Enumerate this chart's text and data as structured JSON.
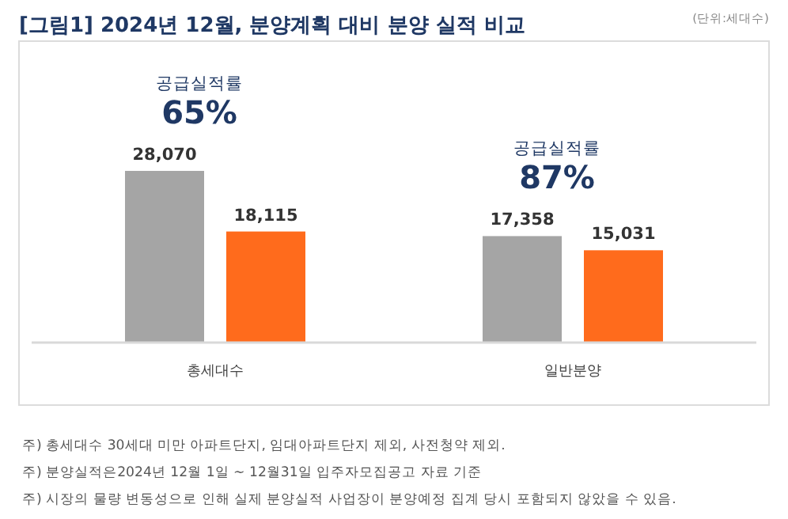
{
  "chart_data": {
    "type": "bar",
    "title": "[그림1] 2024년 12월, 분양계획 대비 분양 실적 비교",
    "subtitle": "(단위:세대수)",
    "categories": [
      "총세대수",
      "일반분양"
    ],
    "series": [
      {
        "color": "#a5a5a5",
        "values": [
          28070,
          17358
        ],
        "value_labels": [
          "28,070",
          "17,358"
        ]
      },
      {
        "color": "#ff6b1c",
        "values": [
          18115,
          15031
        ],
        "value_labels": [
          "18,115",
          "15,031"
        ]
      }
    ],
    "tick_labels": "x",
    "annotations": [
      "공급실적률 65%",
      "공급실적률 87%",
      "주) 총세대수 30세대 미만 아파트단지, 임대아파트단지 제외, 사전청약 제외.",
      "주) 분양실적은2024년 12월 1일 ~ 12월31일 입주자모집공고 자료 기준",
      "주) 시장의 물량 변동성으로 인해 실제 분양실적 사업장이 분양예정 집계 당시 포함되지 않았을 수 있음."
    ]
  }
}
